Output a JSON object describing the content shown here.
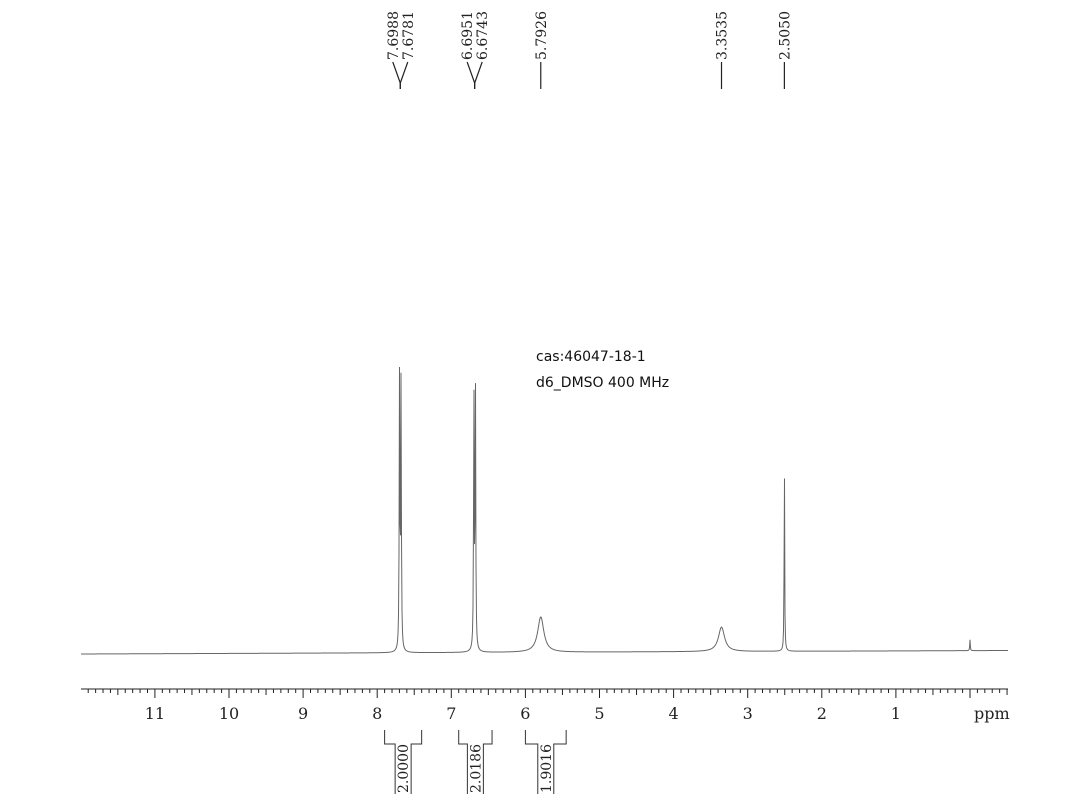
{
  "chart_data": {
    "type": "line",
    "info": {
      "line1": "cas:46047-18-1",
      "line2": "d6_DMSO  400 MHz"
    },
    "x_axis": {
      "label": "ppm",
      "range": [
        12.0,
        -0.5
      ],
      "reversed": true,
      "ticks": [
        {
          "value": 11,
          "label": "11"
        },
        {
          "value": 10,
          "label": "10"
        },
        {
          "value": 9,
          "label": "9"
        },
        {
          "value": 8,
          "label": "8"
        },
        {
          "value": 7,
          "label": "7"
        },
        {
          "value": 6,
          "label": "6"
        },
        {
          "value": 5,
          "label": "5"
        },
        {
          "value": 4,
          "label": "4"
        },
        {
          "value": 3,
          "label": "3"
        },
        {
          "value": 2,
          "label": "2"
        },
        {
          "value": 1,
          "label": "1"
        },
        {
          "value": 0,
          "label": ""
        }
      ]
    },
    "peaks": [
      {
        "shift": 7.6988,
        "height": 1.0,
        "width": 0.005
      },
      {
        "shift": 7.6781,
        "height": 0.99,
        "width": 0.005
      },
      {
        "shift": 6.6951,
        "height": 0.98,
        "width": 0.005
      },
      {
        "shift": 6.6743,
        "height": 0.97,
        "width": 0.005
      },
      {
        "shift": 5.7926,
        "height": 0.13,
        "width": 0.05
      },
      {
        "shift": 3.3535,
        "height": 0.09,
        "width": 0.05
      },
      {
        "shift": 2.505,
        "height": 0.74,
        "width": 0.004
      },
      {
        "shift": 0.0,
        "height": 0.04,
        "width": 0.004
      }
    ],
    "peak_labels": [
      {
        "group": [
          {
            "text": "7.6988",
            "shift": 7.6988
          },
          {
            "text": "7.6781",
            "shift": 7.6781
          }
        ]
      },
      {
        "group": [
          {
            "text": "6.6951",
            "shift": 6.6951
          },
          {
            "text": "6.6743",
            "shift": 6.6743
          }
        ]
      },
      {
        "group": [
          {
            "text": "5.7926",
            "shift": 5.7926
          }
        ]
      },
      {
        "group": [
          {
            "text": "3.3535",
            "shift": 3.3535
          }
        ]
      },
      {
        "group": [
          {
            "text": "2.5050",
            "shift": 2.505
          }
        ]
      }
    ],
    "integrals": [
      {
        "from": 7.9,
        "to": 7.4,
        "value": "2.0000"
      },
      {
        "from": 6.9,
        "to": 6.45,
        "value": "2.0186"
      },
      {
        "from": 6.0,
        "to": 5.45,
        "value": "1.9016"
      }
    ]
  }
}
